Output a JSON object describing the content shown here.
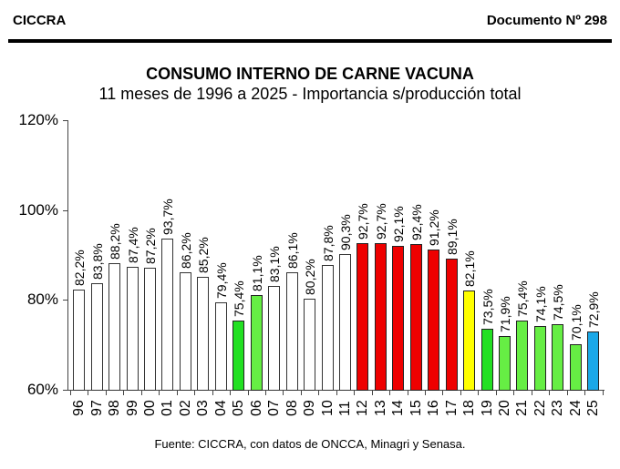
{
  "header": {
    "org": "CICCRA",
    "document": "Documento Nº 298"
  },
  "footer": {
    "source": "Fuente: CICCRA, con datos de ONCCA, Minagri y Senasa."
  },
  "colors": {
    "white": "#ffffff",
    "green_dark": "#22e022",
    "green_light": "#66ee44",
    "red": "#ee0000",
    "yellow": "#ffff00",
    "blue": "#1aa8e8"
  },
  "chart_data": {
    "type": "bar",
    "title": "CONSUMO INTERNO DE CARNE VACUNA",
    "subtitle": "11 meses de 1996 a 2025 - Importancia s/producción total",
    "xlabel": "",
    "ylabel": "",
    "ylim": [
      60,
      120
    ],
    "yticks": [
      "60%",
      "80%",
      "100%",
      "120%"
    ],
    "grid": false,
    "legend": null,
    "categories": [
      "96",
      "97",
      "98",
      "99",
      "00",
      "01",
      "02",
      "03",
      "04",
      "05",
      "06",
      "07",
      "08",
      "09",
      "10",
      "11",
      "12",
      "13",
      "14",
      "15",
      "16",
      "17",
      "18",
      "19",
      "20",
      "21",
      "22",
      "23",
      "24",
      "25"
    ],
    "values": [
      82.2,
      83.8,
      88.2,
      87.4,
      87.2,
      93.7,
      86.2,
      85.2,
      79.4,
      75.4,
      81.1,
      83.1,
      86.1,
      80.2,
      87.8,
      90.3,
      92.7,
      92.7,
      92.1,
      92.4,
      91.2,
      89.1,
      82.1,
      73.5,
      71.9,
      75.4,
      74.1,
      74.5,
      70.1,
      72.9
    ],
    "value_labels": [
      "82,2%",
      "83,8%",
      "88,2%",
      "87,4%",
      "87,2%",
      "93,7%",
      "86,2%",
      "85,2%",
      "79,4%",
      "75,4%",
      "81,1%",
      "83,1%",
      "86,1%",
      "80,2%",
      "87,8%",
      "90,3%",
      "92,7%",
      "92,7%",
      "92,1%",
      "92,4%",
      "91,2%",
      "89,1%",
      "82,1%",
      "73,5%",
      "71,9%",
      "75,4%",
      "74,1%",
      "74,5%",
      "70,1%",
      "72,9%"
    ],
    "bar_colors": [
      "white",
      "white",
      "white",
      "white",
      "white",
      "white",
      "white",
      "white",
      "white",
      "green_dark",
      "green_light",
      "white",
      "white",
      "white",
      "white",
      "white",
      "red",
      "red",
      "red",
      "red",
      "red",
      "red",
      "yellow",
      "green_dark",
      "green_light",
      "green_light",
      "green_light",
      "green_light",
      "green_light",
      "blue"
    ]
  }
}
